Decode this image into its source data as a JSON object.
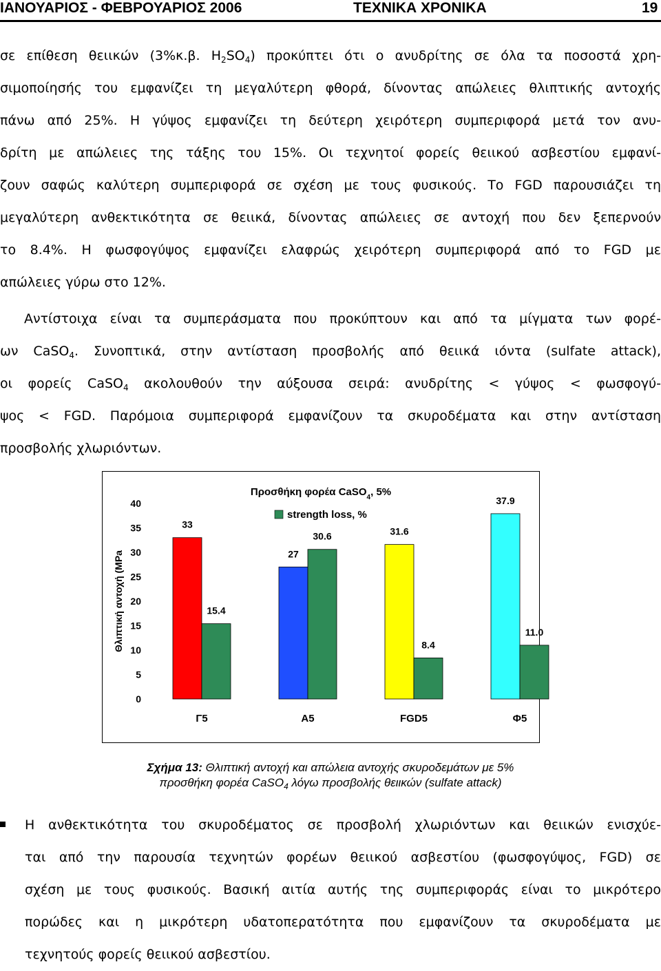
{
  "header": {
    "left": "ΙΑΝΟΥΑΡΙΟΣ - ΦΕΒΡΟΥΑΡΙΟΣ 2006",
    "center": "ΤΕΧΝΙΚΑ ΧΡΟΝΙΚΑ",
    "page_number": "19"
  },
  "para1": {
    "l1_a": "σε επίθεση θειικών (3%κ.β. H",
    "l1_sub1": "2",
    "l1_b": "SO",
    "l1_sub2": "4",
    "l1_c": ") προκύπτει ότι ο ανυδρίτης σε όλα τα ποσοστά χρη-",
    "l2": "σιμοποίησής του εμφανίζει τη μεγαλύτερη φθορά, δίνοντας απώλειες θλιπτικής αντοχής",
    "l3": "πάνω από 25%. Η γύψος εμφανίζει τη δεύτερη χειρότερη συμπεριφορά μετά τον ανυ-",
    "l4": "δρίτη με απώλειες της τάξης του 15%. Οι τεχνητοί φορείς θειικού ασβεστίου εμφανί-",
    "l5": "ζουν σαφώς καλύτερη συμπεριφορά σε σχέση με τους φυσικούς. Το FGD παρουσιάζει τη",
    "l6": "μεγαλύτερη ανθεκτικότητα σε θειικά, δίνοντας απώλειες σε αντοχή που δεν ξεπερνούν",
    "l7": "το 8.4%. Η φωσφογύψος εμφανίζει ελαφρώς χειρότερη συμπεριφορά από το FGD με",
    "l8": "απώλειες γύρω στο 12%."
  },
  "para2": {
    "l1": "Αντίστοιχα είναι τα συμπεράσματα που προκύπτουν και από τα μίγματα των φορέ-",
    "l2_a": "ων CaSO",
    "l2_sub": "4",
    "l2_b": ". Συνοπτικά, στην αντίσταση προσβολής από θειικά ιόντα (sulfate attack),",
    "l3_a": "οι φορείς CaSO",
    "l3_sub": "4",
    "l3_b": " ακολουθούν την αύξουσα σειρά: ανυδρίτης < γύψος < φωσφογύ-",
    "l4": "ψος < FGD. Παρόμοια συμπεριφορά εμφανίζουν τα σκυροδέματα και στην αντίσταση",
    "l5": "προσβολής χλωριόντων."
  },
  "chart_data": {
    "type": "bar",
    "title_a": "Προσθήκη φορέα CaSO",
    "title_sub": "4",
    "title_b": ", 5%",
    "ylabel": "Θλιπτική αντοχή (MPa",
    "ylim": [
      0,
      40
    ],
    "yticks": [
      "0",
      "5",
      "10",
      "15",
      "20",
      "25",
      "30",
      "35",
      "40"
    ],
    "categories": [
      "Γ5",
      "Α5",
      "FGD5",
      "Φ5"
    ],
    "series": [
      {
        "values": [
          33,
          27,
          31.6,
          37.9
        ],
        "labels": [
          "33",
          "27",
          "31.6",
          "37.9"
        ],
        "colors": [
          "#ff0000",
          "#1f4fff",
          "#ffff00",
          "#33ffff"
        ]
      },
      {
        "name": "strength loss, %",
        "values": [
          15.4,
          30.6,
          8.4,
          11.0
        ],
        "labels": [
          "15.4",
          "30.6",
          "8.4",
          "11.0"
        ],
        "color": "#2e8b57"
      }
    ],
    "legend_position": "top-center",
    "grid": false
  },
  "caption": {
    "label": "Σχήμα 13:",
    "text1": "Θλιπτική αντοχή και απώλεια αντοχής σκυροδεμάτων με 5%",
    "text2_a": "προσθήκη φορέα CaSO",
    "text2_sub": "4",
    "text2_b": " λόγω προσβολής θειικών (sulfate attack)"
  },
  "bullet_para": {
    "l1": "Η ανθεκτικότητα του σκυροδέματος σε προσβολή χλωριόντων και θειικών ενισχύε-",
    "l2": "ται από την παρουσία τεχνητών φορέων θειικού ασβεστίου (φωσφογύψος, FGD) σε",
    "l3": "σχέση με τους φυσικούς. Βασική αιτία αυτής της συμπεριφοράς είναι το μικρότερο",
    "l4": "πορώδες και η μικρότερη υδατοπερατότητα που εμφανίζουν τα σκυροδέματα με",
    "l5": "τεχνητούς φορείς θειικού ασβεστίου."
  }
}
